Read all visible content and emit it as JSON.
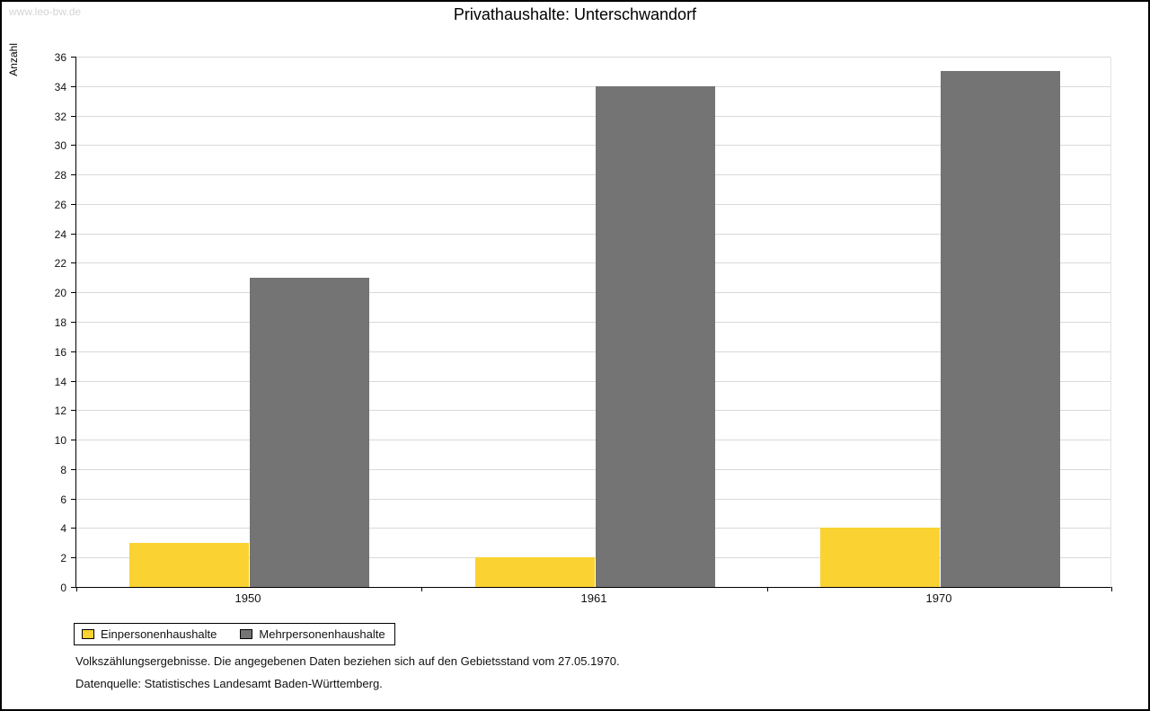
{
  "watermark": "www.leo-bw.de",
  "chart_data": {
    "type": "bar",
    "title": "Privathaushalte: Unterschwandorf",
    "ylabel": "Anzahl",
    "xlabel": "",
    "categories": [
      "1950",
      "1961",
      "1970"
    ],
    "series": [
      {
        "name": "Einpersonenhaushalte",
        "color": "#fad232",
        "values": [
          3,
          2,
          4
        ]
      },
      {
        "name": "Mehrpersonenhaushalte",
        "color": "#747474",
        "values": [
          21,
          34,
          35
        ]
      }
    ],
    "ylim": [
      0,
      36
    ],
    "ytick_step": 2,
    "grid": true,
    "legend_position": "bottom-left"
  },
  "footer": {
    "line1": "Volkszählungsergebnisse. Die angegebenen Daten beziehen sich auf den Gebietsstand vom 27.05.1970.",
    "line2": "Datenquelle: Statistisches Landesamt Baden-Württemberg."
  }
}
